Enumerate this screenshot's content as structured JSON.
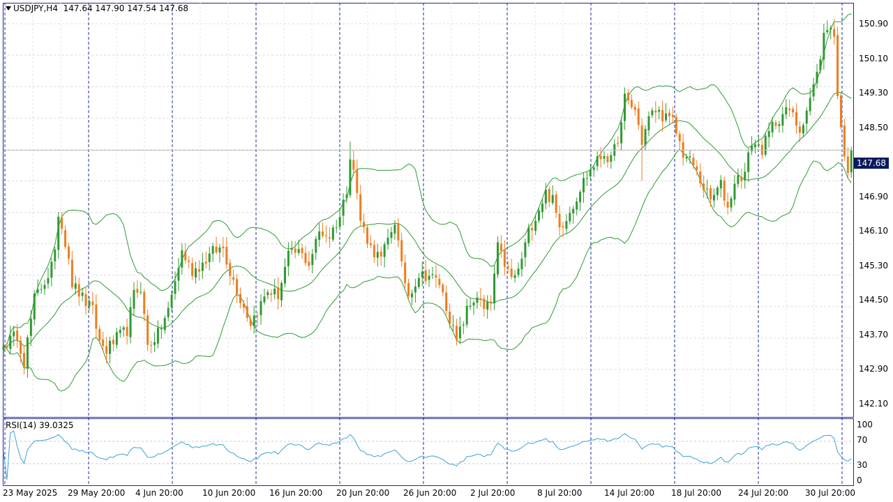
{
  "header": {
    "symbol_timeframe": "USDJPY,H4",
    "ohlc": "147.64 147.90 147.54 147.68"
  },
  "current_price": "147.68",
  "price_axis": [
    "150.90",
    "150.10",
    "149.30",
    "148.50",
    "146.90",
    "146.10",
    "145.30",
    "144.50",
    "143.70",
    "142.90",
    "142.10"
  ],
  "rsi": {
    "label": "RSI(14) 39.0325",
    "levels": [
      "100",
      "70",
      "30",
      "0"
    ]
  },
  "date_axis": [
    "23 May 2025",
    "29 May 20:00",
    "4 Jun 20:00",
    "10 Jun 20:00",
    "16 Jun 20:00",
    "20 Jun 20:00",
    "26 Jun 20:00",
    "2 Jul 20:00",
    "8 Jul 20:00",
    "14 Jul 20:00",
    "18 Jul 20:00",
    "24 Jul 20:00",
    "30 Jul 20:00"
  ],
  "colors": {
    "bull": "#2e9a32",
    "bear": "#f07c1e",
    "band": "#2e9a32",
    "rsi_line": "#3aa0d8",
    "frame": "#1f2a8a",
    "separator": "#1a2aa0",
    "current_price_bg": "#0a1a5c"
  },
  "chart_data": {
    "type": "candlestick",
    "symbol": "USDJPY",
    "timeframe": "H4",
    "ylim": [
      141.6,
      151.4
    ],
    "rsi_ylim": [
      0,
      100
    ],
    "anchors": [
      {
        "i": 0,
        "p": 142.7
      },
      {
        "i": 4,
        "p": 143.0
      },
      {
        "i": 6,
        "p": 142.3
      },
      {
        "i": 9,
        "p": 143.9
      },
      {
        "i": 13,
        "p": 144.5
      },
      {
        "i": 15,
        "p": 145.0
      },
      {
        "i": 16,
        "p": 146.1
      },
      {
        "i": 19,
        "p": 145.0
      },
      {
        "i": 20,
        "p": 144.3
      },
      {
        "i": 24,
        "p": 143.8
      },
      {
        "i": 26,
        "p": 143.6
      },
      {
        "i": 28,
        "p": 142.8
      },
      {
        "i": 30,
        "p": 142.6
      },
      {
        "i": 33,
        "p": 142.9
      },
      {
        "i": 36,
        "p": 143.1
      },
      {
        "i": 38,
        "p": 144.0
      },
      {
        "i": 40,
        "p": 144.2
      },
      {
        "i": 42,
        "p": 142.7
      },
      {
        "i": 45,
        "p": 143.0
      },
      {
        "i": 48,
        "p": 143.6
      },
      {
        "i": 52,
        "p": 145.1
      },
      {
        "i": 55,
        "p": 144.6
      },
      {
        "i": 58,
        "p": 144.8
      },
      {
        "i": 61,
        "p": 145.1
      },
      {
        "i": 64,
        "p": 145.2
      },
      {
        "i": 66,
        "p": 144.6
      },
      {
        "i": 69,
        "p": 143.9
      },
      {
        "i": 72,
        "p": 143.3
      },
      {
        "i": 74,
        "p": 143.6
      },
      {
        "i": 77,
        "p": 144.1
      },
      {
        "i": 80,
        "p": 144.0
      },
      {
        "i": 83,
        "p": 145.0
      },
      {
        "i": 86,
        "p": 145.1
      },
      {
        "i": 89,
        "p": 144.8
      },
      {
        "i": 92,
        "p": 145.6
      },
      {
        "i": 95,
        "p": 145.5
      },
      {
        "i": 98,
        "p": 146.0
      },
      {
        "i": 100,
        "p": 146.7
      },
      {
        "i": 101,
        "p": 147.6
      },
      {
        "i": 102,
        "p": 147.2
      },
      {
        "i": 104,
        "p": 145.9
      },
      {
        "i": 107,
        "p": 145.2
      },
      {
        "i": 110,
        "p": 144.9
      },
      {
        "i": 112,
        "p": 145.4
      },
      {
        "i": 114,
        "p": 145.9
      },
      {
        "i": 116,
        "p": 144.7
      },
      {
        "i": 118,
        "p": 144.0
      },
      {
        "i": 121,
        "p": 144.5
      },
      {
        "i": 124,
        "p": 144.5
      },
      {
        "i": 127,
        "p": 144.3
      },
      {
        "i": 130,
        "p": 143.4
      },
      {
        "i": 132,
        "p": 142.8
      },
      {
        "i": 135,
        "p": 143.6
      },
      {
        "i": 138,
        "p": 144.0
      },
      {
        "i": 140,
        "p": 143.6
      },
      {
        "i": 142,
        "p": 143.8
      },
      {
        "i": 144,
        "p": 145.2
      },
      {
        "i": 146,
        "p": 144.8
      },
      {
        "i": 148,
        "p": 144.4
      },
      {
        "i": 150,
        "p": 144.6
      },
      {
        "i": 153,
        "p": 145.6
      },
      {
        "i": 155,
        "p": 146.0
      },
      {
        "i": 158,
        "p": 146.6
      },
      {
        "i": 160,
        "p": 146.4
      },
      {
        "i": 162,
        "p": 145.7
      },
      {
        "i": 164,
        "p": 146.0
      },
      {
        "i": 166,
        "p": 146.3
      },
      {
        "i": 169,
        "p": 146.9
      },
      {
        "i": 172,
        "p": 147.3
      },
      {
        "i": 175,
        "p": 147.6
      },
      {
        "i": 177,
        "p": 147.4
      },
      {
        "i": 180,
        "p": 148.3
      },
      {
        "i": 181,
        "p": 149.0
      },
      {
        "i": 184,
        "p": 148.7
      },
      {
        "i": 186,
        "p": 147.9
      },
      {
        "i": 188,
        "p": 148.5
      },
      {
        "i": 190,
        "p": 148.7
      },
      {
        "i": 193,
        "p": 148.5
      },
      {
        "i": 195,
        "p": 148.4
      },
      {
        "i": 198,
        "p": 147.6
      },
      {
        "i": 201,
        "p": 147.3
      },
      {
        "i": 203,
        "p": 146.9
      },
      {
        "i": 206,
        "p": 146.4
      },
      {
        "i": 209,
        "p": 146.8
      },
      {
        "i": 211,
        "p": 146.2
      },
      {
        "i": 213,
        "p": 146.9
      },
      {
        "i": 216,
        "p": 147.1
      },
      {
        "i": 218,
        "p": 147.9
      },
      {
        "i": 221,
        "p": 147.7
      },
      {
        "i": 224,
        "p": 148.3
      },
      {
        "i": 227,
        "p": 148.6
      },
      {
        "i": 229,
        "p": 148.7
      },
      {
        "i": 232,
        "p": 148.2
      },
      {
        "i": 235,
        "p": 149.0
      },
      {
        "i": 237,
        "p": 149.6
      },
      {
        "i": 239,
        "p": 150.6
      },
      {
        "i": 241,
        "p": 150.9
      },
      {
        "i": 242,
        "p": 150.6
      },
      {
        "i": 243,
        "p": 149.0
      },
      {
        "i": 244,
        "p": 148.4
      },
      {
        "i": 245,
        "p": 147.4
      },
      {
        "i": 246,
        "p": 147.2
      },
      {
        "i": 247,
        "p": 147.68
      }
    ],
    "wick_spikes": [
      {
        "i": 101,
        "high": 147.9
      },
      {
        "i": 183,
        "high": 149.1
      },
      {
        "i": 186,
        "low": 146.9
      },
      {
        "i": 239,
        "high": 150.9
      }
    ],
    "current_price": 147.68,
    "rsi_last": 39.0325
  }
}
